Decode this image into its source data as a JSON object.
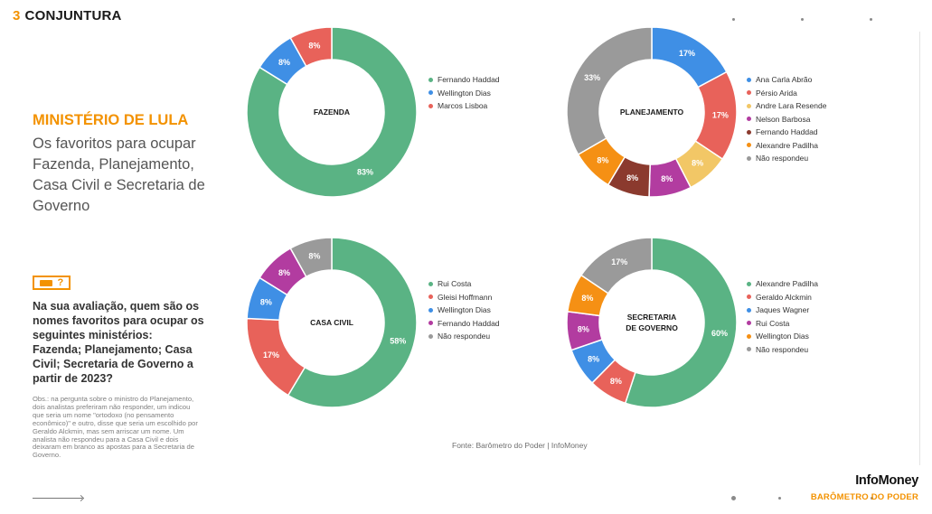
{
  "section": {
    "number": "3",
    "title": "CONJUNTURA"
  },
  "intro": {
    "kicker": "MINISTÉRIO DE LULA",
    "subtitle": "Os favoritos para ocupar Fazenda, Planejamento, Casa Civil e Secretaria de Governo"
  },
  "question": "Na sua avaliação, quem são os nomes favoritos para ocupar os seguintes ministérios: Fazenda; Planejamento; Casa Civil; Secretaria de Governo a partir de 2023?",
  "note": {
    "label": "Obs.:",
    "text": "na pergunta sobre o ministro do Planejamento, dois analistas preferiram não responder, um indicou que seria um nome \"ortodoxo (no pensamento econômico)\" e outro, disse que seria um escolhido por Geraldo Alckmin, mas sem arriscar um nome. Um analista não respondeu para a Casa Civil e dois deixaram em branco as apostas para a Secretaria de Governo."
  },
  "source": "Fonte: Barômetro do Poder | InfoMoney",
  "brand": {
    "name": "InfoMoney",
    "subtitle": "BARÔMETRO DO PODER"
  },
  "chart_data": [
    {
      "type": "pie",
      "center_label": [
        "FAZENDA"
      ],
      "series": [
        {
          "name": "Fernando Haddad",
          "value": 83,
          "label": "83%",
          "color": "#5ab384"
        },
        {
          "name": "Wellington Dias",
          "value": 8,
          "label": "8%",
          "color": "#3f8fe5"
        },
        {
          "name": "Marcos Lisboa",
          "value": 8,
          "label": "8%",
          "color": "#e8625a"
        }
      ]
    },
    {
      "type": "pie",
      "center_label": [
        "PLANEJAMENTO"
      ],
      "series": [
        {
          "name": "Ana Carla Abrão",
          "value": 17,
          "label": "17%",
          "color": "#3f8fe5"
        },
        {
          "name": "Pérsio Arida",
          "value": 17,
          "label": "17%",
          "color": "#e8625a"
        },
        {
          "name": "Andre Lara Resende",
          "value": 8,
          "label": "8%",
          "color": "#f2c766"
        },
        {
          "name": "Nelson Barbosa",
          "value": 8,
          "label": "8%",
          "color": "#b23ca0"
        },
        {
          "name": "Fernando Haddad",
          "value": 8,
          "label": "8%",
          "color": "#8b3a2e"
        },
        {
          "name": "Alexandre Padilha",
          "value": 8,
          "label": "8%",
          "color": "#f59014"
        },
        {
          "name": "Não respondeu",
          "value": 33,
          "label": "33%",
          "color": "#9a9a9a"
        }
      ]
    },
    {
      "type": "pie",
      "center_label": [
        "CASA CIVIL"
      ],
      "series": [
        {
          "name": "Rui Costa",
          "value": 58,
          "label": "58%",
          "color": "#5ab384"
        },
        {
          "name": "Gleisi Hoffmann",
          "value": 17,
          "label": "17%",
          "color": "#e8625a"
        },
        {
          "name": "Wellington Dias",
          "value": 8,
          "label": "8%",
          "color": "#3f8fe5"
        },
        {
          "name": "Fernando Haddad",
          "value": 8,
          "label": "8%",
          "color": "#b23ca0"
        },
        {
          "name": "Não respondeu",
          "value": 8,
          "label": "8%",
          "color": "#9a9a9a"
        }
      ]
    },
    {
      "type": "pie",
      "center_label": [
        "SECRETARIA",
        "DE GOVERNO"
      ],
      "series": [
        {
          "name": "Alexandre Padilha",
          "value": 60,
          "label": "60%",
          "color": "#5ab384"
        },
        {
          "name": "Geraldo Alckmin",
          "value": 8,
          "label": "8%",
          "color": "#e8625a"
        },
        {
          "name": "Jaques Wagner",
          "value": 8,
          "label": "8%",
          "color": "#3f8fe5"
        },
        {
          "name": "Rui Costa",
          "value": 8,
          "label": "8%",
          "color": "#b23ca0"
        },
        {
          "name": "Wellington Dias",
          "value": 8,
          "label": "8%",
          "color": "#f59014"
        },
        {
          "name": "Não respondeu",
          "value": 17,
          "label": "17%",
          "color": "#9a9a9a"
        }
      ]
    }
  ]
}
